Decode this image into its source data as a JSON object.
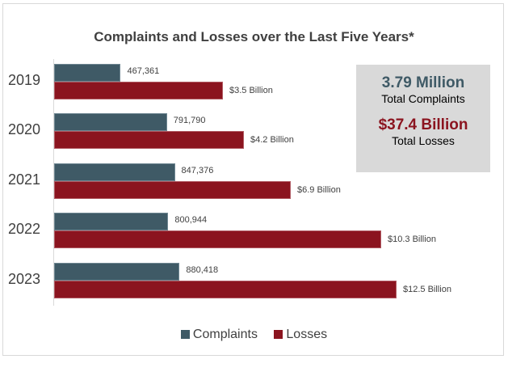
{
  "chart_data": {
    "type": "bar",
    "orientation": "horizontal",
    "title": "Complaints and Losses over the Last Five Years*",
    "categories": [
      "2019",
      "2020",
      "2021",
      "2022",
      "2023"
    ],
    "series": [
      {
        "name": "Complaints",
        "color": "#3f5a66",
        "values": [
          467361,
          791790,
          847376,
          800944,
          880418
        ],
        "labels": [
          "467,361",
          "791,790",
          "847,376",
          "800,944",
          "880,418"
        ]
      },
      {
        "name": "Losses",
        "color": "#8b141f",
        "values": [
          3.5,
          4.2,
          6.9,
          10.3,
          12.5
        ],
        "labels": [
          "$3.5 Billion",
          "$4.2 Billion",
          "$6.9 Billion",
          "$10.3 Billion",
          "$12.5 Billion"
        ]
      }
    ],
    "legend": "bottom",
    "grid": false
  },
  "summary": {
    "complaints_value": "3.79 Million",
    "complaints_label": "Total Complaints",
    "losses_value": "$37.4 Billion",
    "losses_label": "Total Losses"
  }
}
